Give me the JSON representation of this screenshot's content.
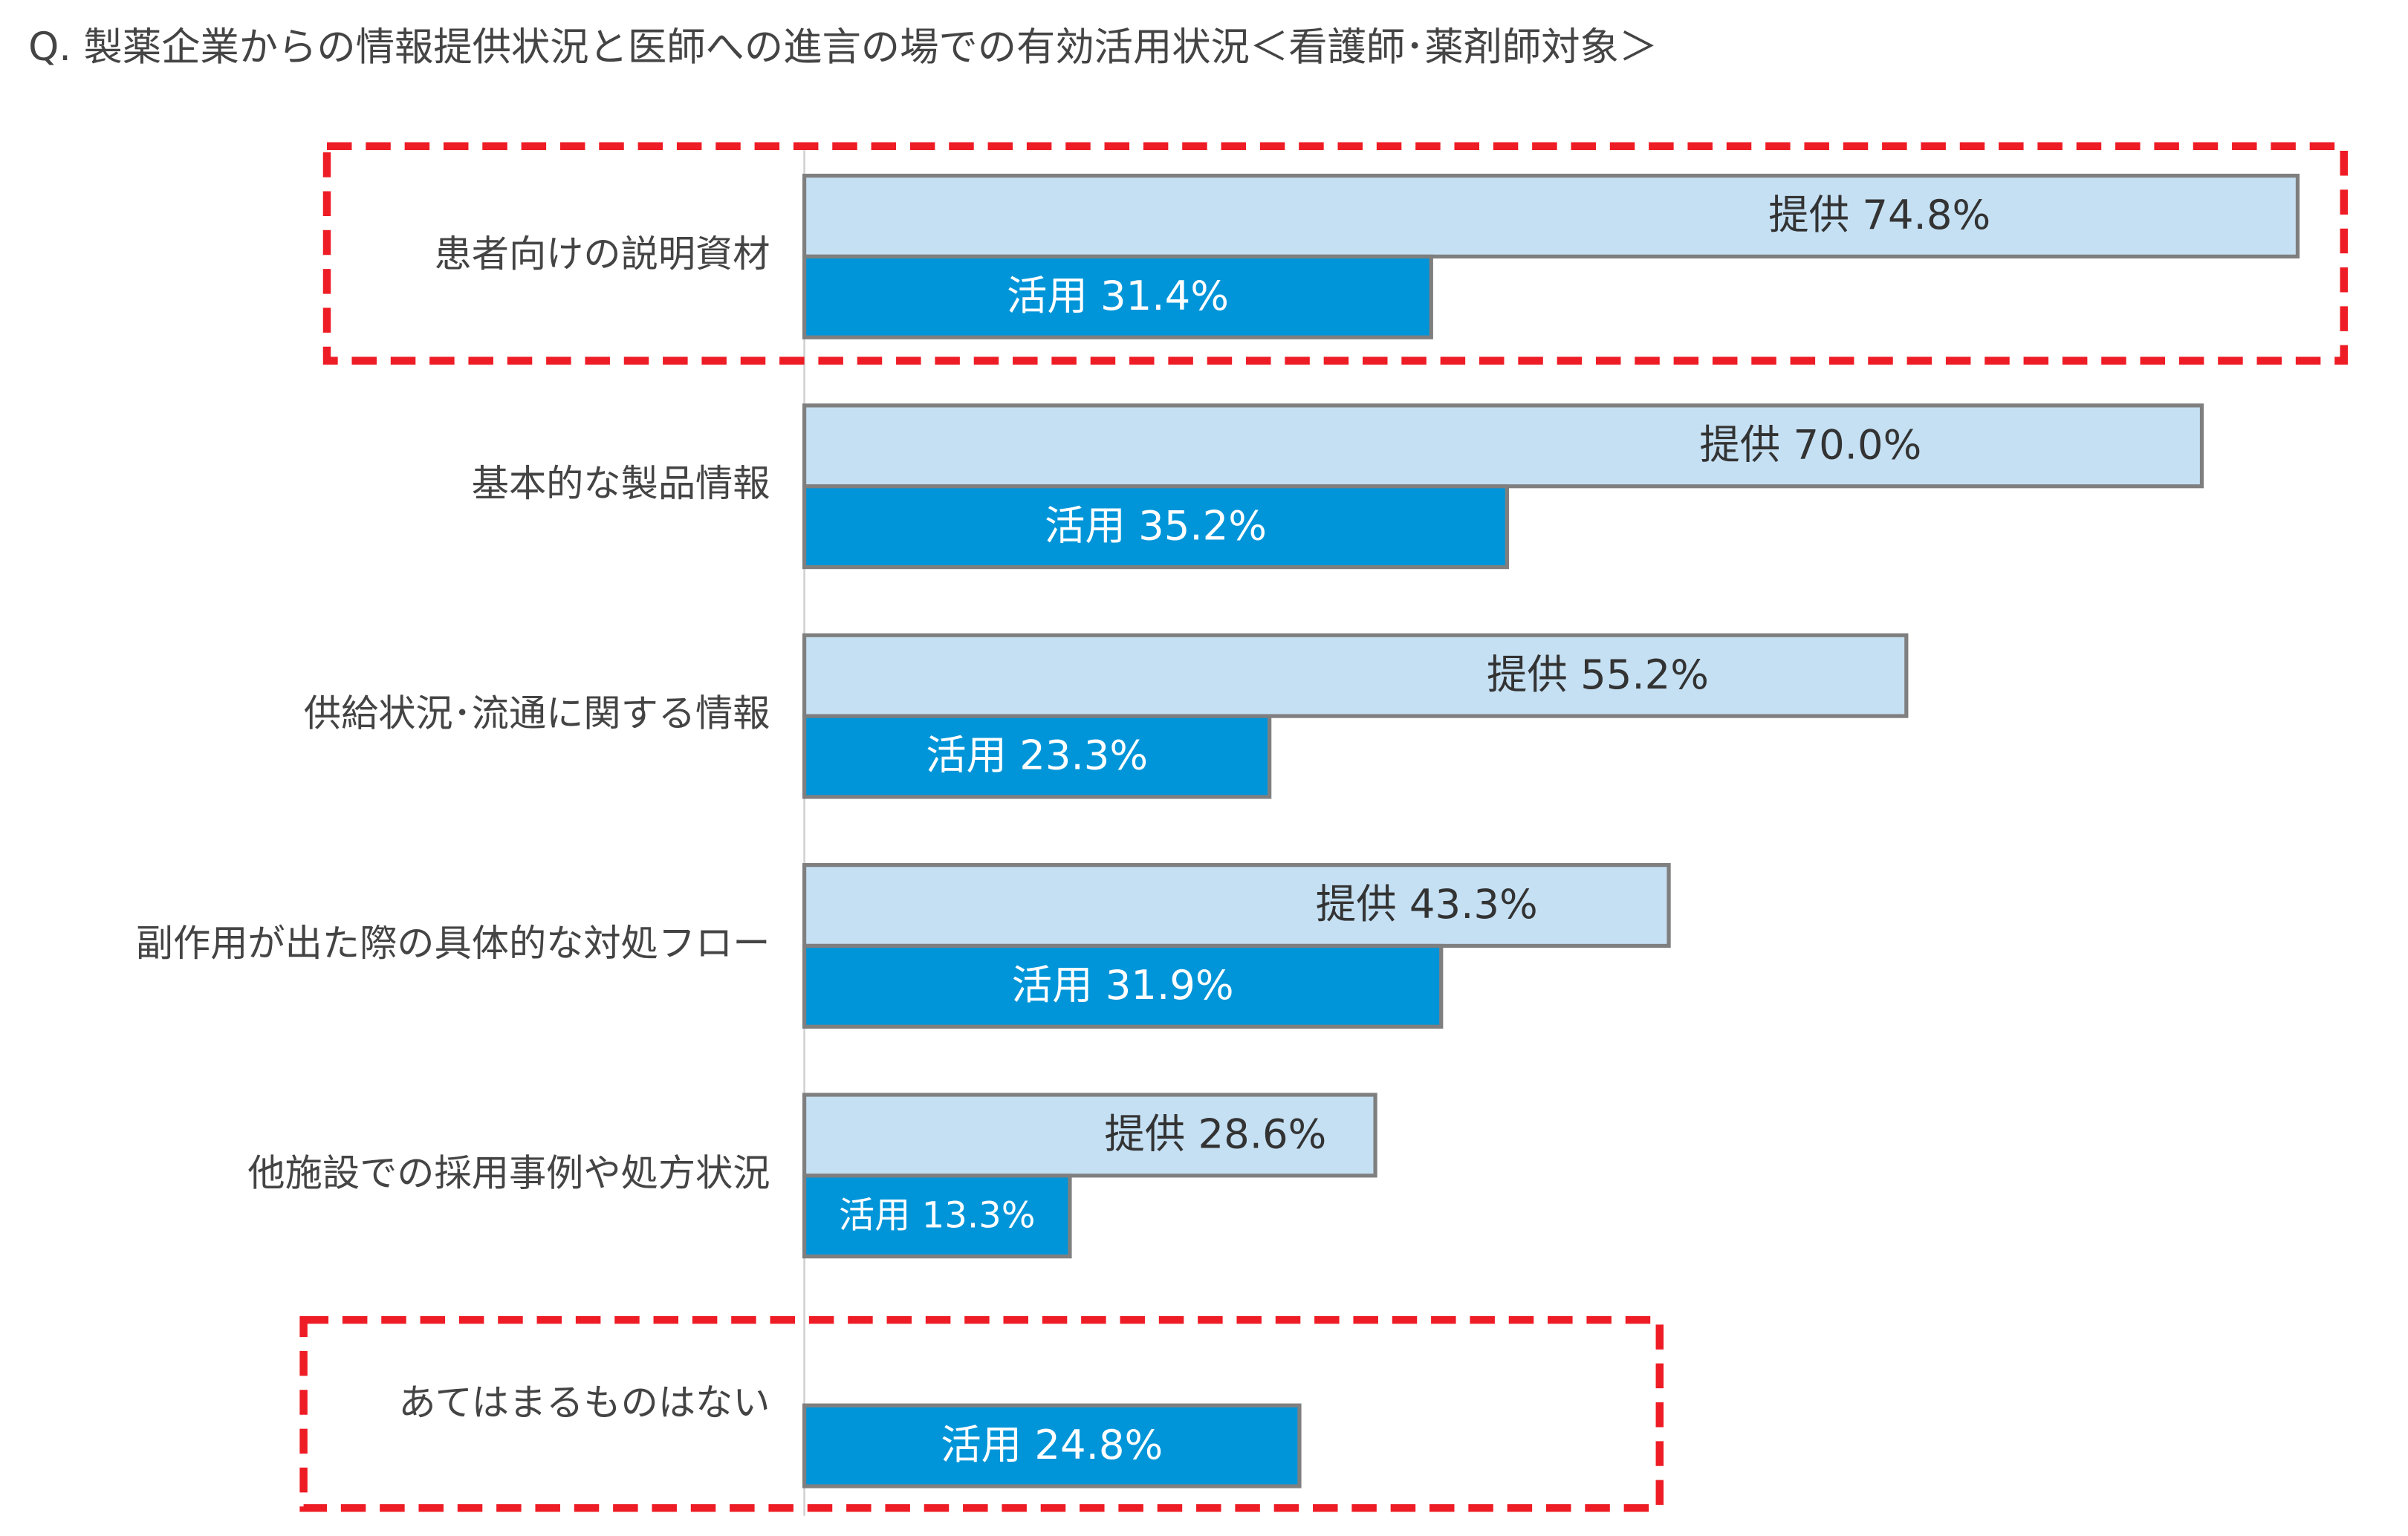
{
  "chart_data": {
    "type": "bar",
    "orientation": "horizontal",
    "title": "Q. 製薬企業からの情報提供状況と医師への進言の場での有効活用状況＜看護師･薬剤師対象＞",
    "categories": [
      "患者向けの説明資材",
      "基本的な製品情報",
      "供給状況･流通に関する情報",
      "副作用が出た際の具体的な対処フロー",
      "他施設での採用事例や処方状況",
      "あてはまるものはない"
    ],
    "series": [
      {
        "color": "#c5e0f3",
        "values": [
          74.8,
          70.0,
          55.2,
          43.3,
          28.6,
          null
        ],
        "value_labels": [
          "提供 74.8%",
          "提供 70.0%",
          "提供 55.2%",
          "提供 43.3%",
          "提供 28.6%",
          null
        ]
      },
      {
        "color": "#0095d9",
        "values": [
          31.4,
          35.2,
          23.3,
          31.9,
          13.3,
          24.8
        ],
        "value_labels": [
          "活用 31.4%",
          "活用 35.2%",
          "活用 23.3%",
          "活用 31.9%",
          "活用 13.3%",
          "活用 24.8%"
        ]
      }
    ],
    "xlim": [
      0,
      80
    ],
    "highlight": [
      0,
      5
    ],
    "highlight_color": "#ee1c25"
  }
}
